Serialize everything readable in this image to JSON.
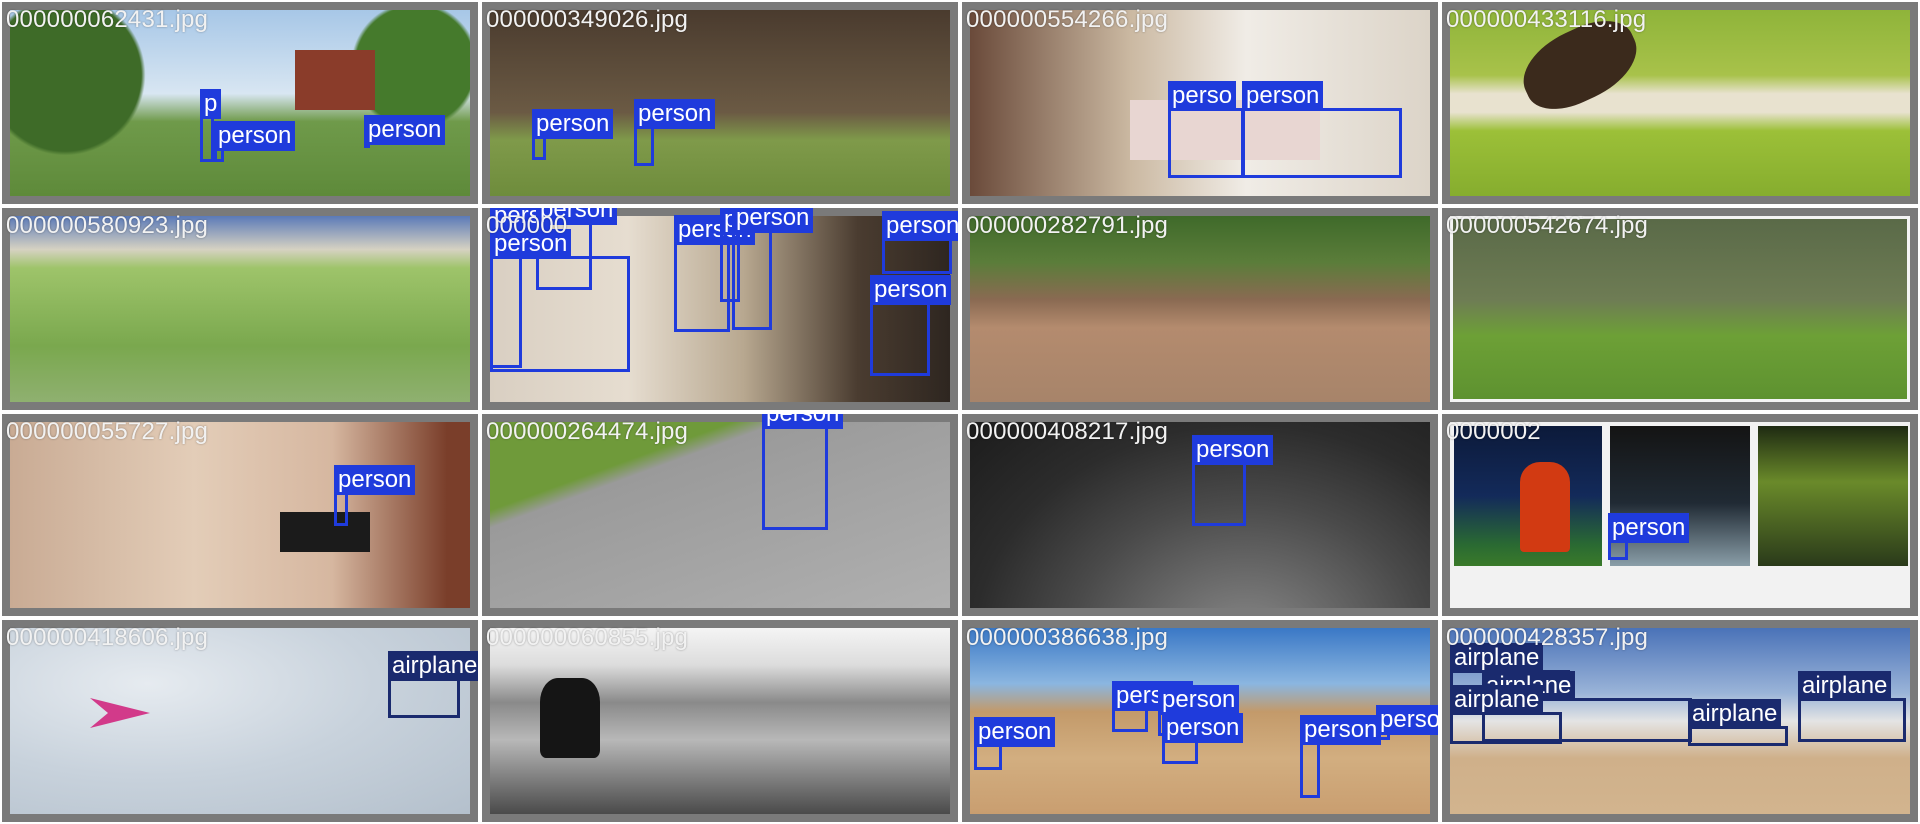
{
  "tiles": [
    {
      "filename": "000000062431.jpg",
      "labels": [
        "p",
        "person",
        "person"
      ]
    },
    {
      "filename": "000000349026.jpg",
      "labels": [
        "person",
        "person"
      ]
    },
    {
      "filename": "000000554266.jpg",
      "labels": [
        "perso",
        "person"
      ]
    },
    {
      "filename": "000000433116.jpg",
      "labels": []
    },
    {
      "filename": "000000580923.jpg",
      "labels": []
    },
    {
      "filename": "000000",
      "labels": [
        "persi",
        "person",
        "person",
        "person",
        "pe",
        "person",
        "person",
        "person"
      ]
    },
    {
      "filename": "000000282791.jpg",
      "labels": []
    },
    {
      "filename": "000000542674.jpg",
      "labels": []
    },
    {
      "filename": "000000055727.jpg",
      "labels": [
        "person"
      ]
    },
    {
      "filename": "000000264474.jpg",
      "labels": [
        "person"
      ]
    },
    {
      "filename": "000000408217.jpg",
      "labels": [
        "person"
      ]
    },
    {
      "filename": "0000002",
      "labels": [
        "person"
      ]
    },
    {
      "filename": "000000418606.jpg",
      "labels": [
        "airplane"
      ]
    },
    {
      "filename": "000000060855.jpg",
      "labels": []
    },
    {
      "filename": "000000386638.jpg",
      "labels": [
        "person",
        "person",
        "person",
        "person",
        "person",
        "person"
      ]
    },
    {
      "filename": "000000428357.jpg",
      "labels": [
        "airplane",
        "airplane",
        "airplane",
        "airplane",
        "airplane"
      ]
    }
  ],
  "colors": {
    "person_box": "#1f3bdc",
    "airplane_box": "#1a2a6e",
    "tile_border": "#7a7a7a"
  }
}
